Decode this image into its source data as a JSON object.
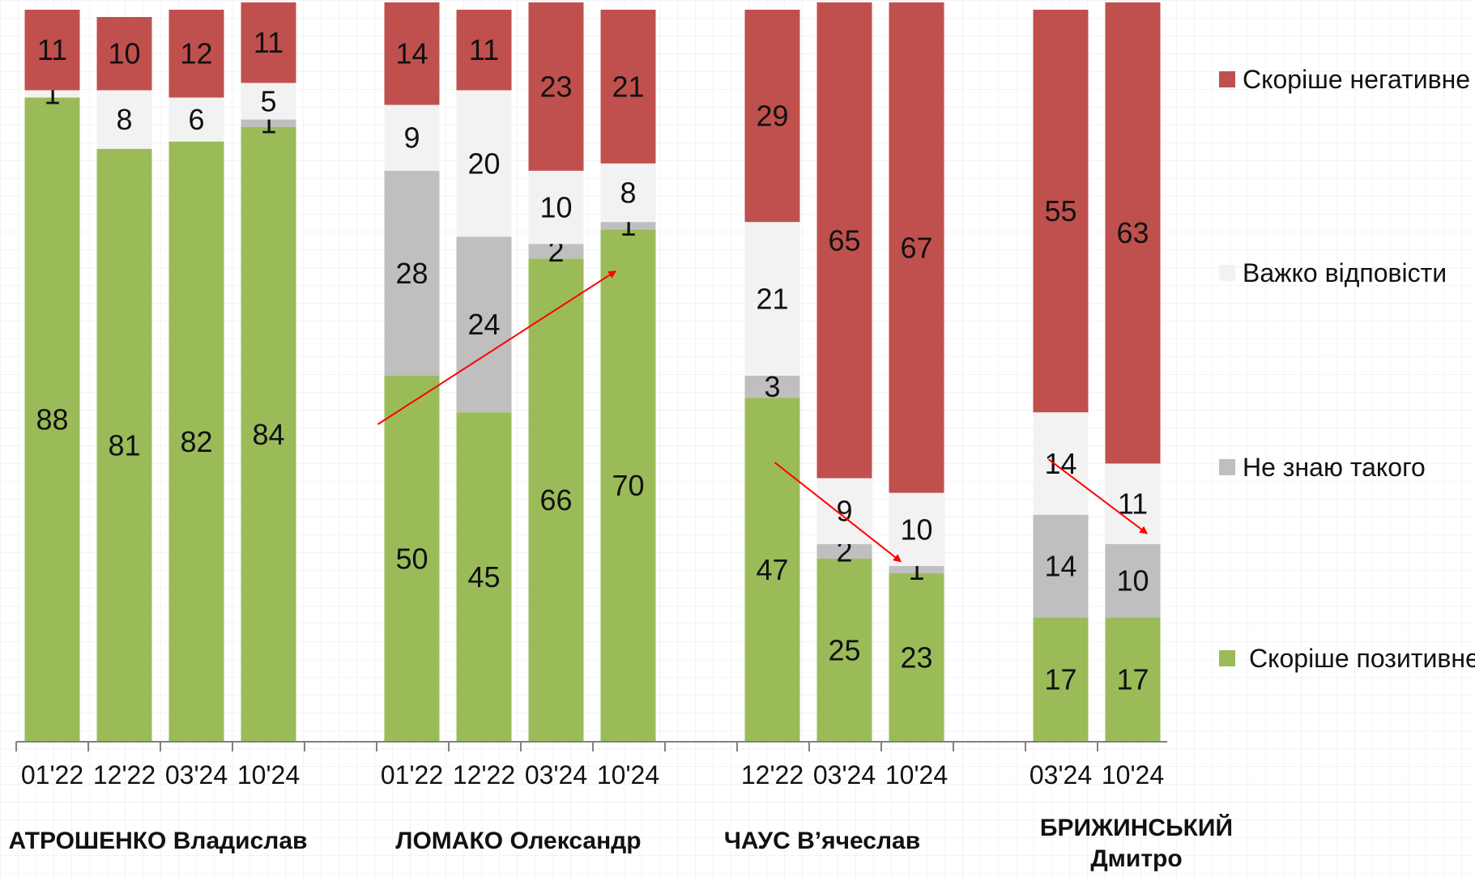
{
  "chart_data": {
    "type": "bar",
    "stacked": true,
    "unit": "%",
    "ylim": [
      0,
      100
    ],
    "grid": true,
    "legend_position": "right",
    "series_order": [
      "positive",
      "dont_know",
      "hard_to_say",
      "negative"
    ],
    "legend": [
      {
        "key": "negative",
        "label": "Скоріше негативне",
        "color": "#c0504d"
      },
      {
        "key": "hard_to_say",
        "label": "Важко відповісти",
        "color": "#f2f2f2"
      },
      {
        "key": "dont_know",
        "label": "Не знаю такого",
        "color": "#bfbfbf"
      },
      {
        "key": "positive",
        "label": "Скоріше позитивне",
        "color": "#9bbb59"
      }
    ],
    "groups": [
      {
        "name_lines": [
          "АТРОШЕНКО Владислав"
        ],
        "bars": [
          {
            "category": "01'22",
            "positive": 88,
            "dont_know": 0,
            "hard_to_say": 1,
            "negative": 11
          },
          {
            "category": "12'22",
            "positive": 81,
            "dont_know": 0,
            "hard_to_say": 8,
            "negative": 10
          },
          {
            "category": "03'24",
            "positive": 82,
            "dont_know": 0,
            "hard_to_say": 6,
            "negative": 12
          },
          {
            "category": "10'24",
            "positive": 84,
            "dont_know": 1,
            "hard_to_say": 5,
            "negative": 11
          }
        ]
      },
      {
        "name_lines": [
          "ЛОМАКО Олександр"
        ],
        "bars": [
          {
            "category": "01'22",
            "positive": 50,
            "dont_know": 28,
            "hard_to_say": 9,
            "negative": 14
          },
          {
            "category": "12'22",
            "positive": 45,
            "dont_know": 24,
            "hard_to_say": 20,
            "negative": 11
          },
          {
            "category": "03'24",
            "positive": 66,
            "dont_know": 2,
            "hard_to_say": 10,
            "negative": 23
          },
          {
            "category": "10'24",
            "positive": 70,
            "dont_know": 1,
            "hard_to_say": 8,
            "negative": 21
          }
        ]
      },
      {
        "name_lines": [
          "ЧАУС В’ячеслав"
        ],
        "bars": [
          {
            "category": "12'22",
            "positive": 47,
            "dont_know": 3,
            "hard_to_say": 21,
            "negative": 29
          },
          {
            "category": "03'24",
            "positive": 25,
            "dont_know": 2,
            "hard_to_say": 9,
            "negative": 65
          },
          {
            "category": "10'24",
            "positive": 23,
            "dont_know": 1,
            "hard_to_say": 10,
            "negative": 67
          }
        ]
      },
      {
        "name_lines": [
          "БРИЖИНСЬКИЙ",
          "Дмитро"
        ],
        "bars": [
          {
            "category": "03'24",
            "positive": 17,
            "dont_know": 14,
            "hard_to_say": 14,
            "negative": 55
          },
          {
            "category": "10'24",
            "positive": 17,
            "dont_know": 10,
            "hard_to_say": 11,
            "negative": 63
          }
        ]
      }
    ],
    "annotations": [
      {
        "type": "arrow",
        "color": "#ff0000",
        "direction": "up",
        "from": {
          "group": 1,
          "bar": 0
        },
        "to": {
          "group": 1,
          "bar": 3
        }
      },
      {
        "type": "arrow",
        "color": "#ff0000",
        "direction": "down",
        "from": {
          "group": 2,
          "bar": 0
        },
        "to": {
          "group": 2,
          "bar": 2
        }
      },
      {
        "type": "arrow",
        "color": "#ff0000",
        "direction": "down",
        "from": {
          "group": 3,
          "bar": 0
        },
        "to": {
          "group": 3,
          "bar": 1
        }
      }
    ]
  }
}
